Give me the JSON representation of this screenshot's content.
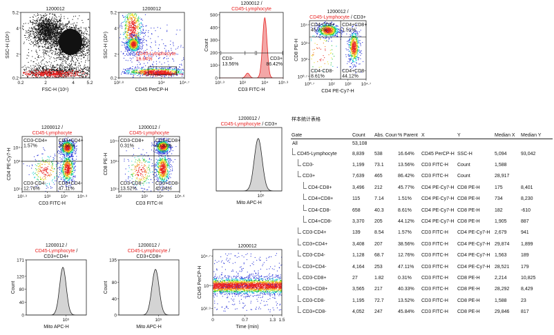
{
  "colors": {
    "red": "#e8201f",
    "blue": "#2b36d8",
    "cyan": "#1fd0d8",
    "green": "#27c23a",
    "yellow": "#e8e21a",
    "orange": "#f0801b",
    "hist_fill": "#d4d4d4"
  },
  "panels": [
    {
      "id": "p1",
      "kind": "dot",
      "title": [
        [
          {
            "t": "1200012",
            "c": "k"
          }
        ]
      ],
      "xlabel": "FSC-H (10⁶)",
      "ylabel": "SSC-H (10⁶)",
      "xticks": [
        {
          "v": 0.2,
          "l": "0.2"
        },
        {
          "v": 2,
          "l": "2"
        },
        {
          "v": 4,
          "l": "4"
        },
        {
          "v": 5.2,
          "l": "5.2"
        }
      ],
      "yticks": [
        {
          "v": 0.2,
          "l": "0.2"
        },
        {
          "v": 2,
          "l": "2"
        },
        {
          "v": 4,
          "l": "4"
        },
        {
          "v": 5.2,
          "l": "5.2"
        }
      ],
      "xr": [
        0.2,
        5.2
      ],
      "yr": [
        0.2,
        5.2
      ]
    },
    {
      "id": "p2",
      "kind": "dot",
      "title": [
        [
          {
            "t": "1200012",
            "c": "k"
          }
        ]
      ],
      "xlabel": "CD45 PerCP-H",
      "ylabel": "SSC-H (10⁶)",
      "xticks": [
        {
          "v": 0,
          "l": "10²·⁸"
        },
        {
          "v": 0.65,
          "l": "10⁴"
        },
        {
          "v": 1,
          "l": "10⁴·⁷"
        }
      ],
      "yticks": [
        {
          "v": 0.2,
          "l": "0.2"
        },
        {
          "v": 2,
          "l": "2"
        },
        {
          "v": 4,
          "l": "4"
        },
        {
          "v": 5.2,
          "l": "5.2"
        }
      ],
      "xr": [
        0,
        1
      ],
      "yr": [
        0.2,
        5.2
      ],
      "gate_label": "CD45-Lymphocyte",
      "gate_pct": "16.64%"
    },
    {
      "id": "p3",
      "kind": "hist",
      "title": [
        [
          {
            "t": "1200012 /",
            "c": "k"
          }
        ],
        [
          {
            "t": "CD45-Lymphocyte",
            "c": "r"
          }
        ]
      ],
      "xlabel": "CD3 FITC-H",
      "ylabel": "Count",
      "xticks": [
        {
          "v": 0,
          "l": "10¹·³"
        },
        {
          "v": 0.36,
          "l": "10³"
        },
        {
          "v": 0.71,
          "l": "10⁴"
        },
        {
          "v": 1,
          "l": "10⁵·³"
        }
      ],
      "yticks": [
        {
          "v": 0,
          "l": "0"
        },
        {
          "v": 100,
          "l": "100"
        },
        {
          "v": 200,
          "l": "200"
        },
        {
          "v": 300,
          "l": "300"
        },
        {
          "v": 400,
          "l": "400"
        },
        {
          "v": 500,
          "l": "500"
        }
      ],
      "yr": [
        0,
        520
      ],
      "peaks": [
        [
          0.44,
          0.03,
          0.08
        ],
        [
          0.71,
          0.035,
          1.0
        ]
      ],
      "fill": "red",
      "regions": [
        {
          "label": "CD3-",
          "pct": "13.56%"
        },
        {
          "label": "CD3+",
          "pct": "86.42%"
        }
      ]
    },
    {
      "id": "p4",
      "kind": "quad",
      "title": [
        [
          {
            "t": "1200012 /",
            "c": "k"
          }
        ],
        [
          {
            "t": "CD45-Lymphocyte",
            "c": "r"
          },
          {
            "t": " / CD3+",
            "c": "k"
          }
        ]
      ],
      "xlabel": "CD4 PE-Cy7-H",
      "ylabel": "CD8 PE-H",
      "xticks": [
        {
          "v": 0,
          "l": "10⁰·⁷"
        },
        {
          "v": 0.39,
          "l": "10²"
        },
        {
          "v": 0.68,
          "l": "10³"
        },
        {
          "v": 1,
          "l": "10⁴·⁷"
        }
      ],
      "yticks": [
        {
          "v": 0.05,
          "l": "10⁰·⁷"
        },
        {
          "v": 0.34,
          "l": "10²"
        },
        {
          "v": 0.62,
          "l": "10³"
        },
        {
          "v": 0.93,
          "l": "10⁴"
        }
      ],
      "quads": [
        {
          "label": "CD4-CD8+",
          "pct": "45.77%"
        },
        {
          "label": "CD4+CD8+",
          "pct": "1.51%"
        },
        {
          "label": "CD4-CD8-",
          "pct": "8.61%"
        },
        {
          "label": "CD4+CD8-",
          "pct": "44.12%"
        }
      ],
      "qx": 0.55,
      "qy": 0.72,
      "clusters": [
        [
          0.32,
          0.84,
          0.1,
          0.06,
          1.0
        ],
        [
          0.78,
          0.55,
          0.05,
          0.14,
          0.9
        ],
        [
          0.2,
          0.45,
          0.16,
          0.2,
          0.12
        ]
      ]
    },
    {
      "id": "p5",
      "kind": "quad",
      "title": [
        [
          {
            "t": "1200012 /",
            "c": "k"
          }
        ],
        [
          {
            "t": "CD45-Lymphocyte",
            "c": "r"
          }
        ]
      ],
      "xlabel": "CD3 FITC-H",
      "ylabel": "CD4 PE-Cy7-H",
      "xticks": [
        {
          "v": 0,
          "l": "10¹·³"
        },
        {
          "v": 0.42,
          "l": "10³"
        },
        {
          "v": 0.7,
          "l": "10⁴"
        },
        {
          "v": 1,
          "l": "10⁵·³"
        }
      ],
      "yticks": [
        {
          "v": 0.05,
          "l": "10¹"
        },
        {
          "v": 0.55,
          "l": "10³"
        },
        {
          "v": 0.8,
          "l": "10⁴"
        }
      ],
      "quads": [
        {
          "label": "CD3-CD4+",
          "pct": "1.57%"
        },
        {
          "label": "CD3+CD4+",
          "pct": "38.56%"
        },
        {
          "label": "CD3-CD4-",
          "pct": "12.76%"
        },
        {
          "label": "CD3+CD4-",
          "pct": "47.11%"
        }
      ],
      "qx": 0.58,
      "qy": 0.55,
      "clusters": [
        [
          0.75,
          0.8,
          0.06,
          0.07,
          1.0
        ],
        [
          0.75,
          0.42,
          0.06,
          0.13,
          0.9
        ],
        [
          0.38,
          0.38,
          0.12,
          0.15,
          0.35
        ]
      ]
    },
    {
      "id": "p6",
      "kind": "quad",
      "title": [
        [
          {
            "t": "1200012 /",
            "c": "k"
          }
        ],
        [
          {
            "t": "CD45-Lymphocyte",
            "c": "r"
          }
        ]
      ],
      "xlabel": "CD3 FITC-H",
      "ylabel": "CD8 PE-H",
      "xticks": [
        {
          "v": 0,
          "l": "10¹"
        },
        {
          "v": 0.42,
          "l": "10³"
        },
        {
          "v": 0.68,
          "l": "10⁴"
        },
        {
          "v": 1,
          "l": "10⁵·⁶"
        }
      ],
      "yticks": [
        {
          "v": 0.05,
          "l": "10¹"
        },
        {
          "v": 0.55,
          "l": "10³"
        },
        {
          "v": 0.92,
          "l": "10⁴"
        }
      ],
      "quads": [
        {
          "label": "CD3-CD8+",
          "pct": "0.31%"
        },
        {
          "label": "CD3+CD8+",
          "pct": "40.33%"
        },
        {
          "label": "CD3-CD8-",
          "pct": "13.52%"
        },
        {
          "label": "CD3+CD8-",
          "pct": "45.84%"
        }
      ],
      "qx": 0.58,
      "qy": 0.65,
      "clusters": [
        [
          0.72,
          0.82,
          0.06,
          0.06,
          1.0
        ],
        [
          0.72,
          0.42,
          0.06,
          0.14,
          0.9
        ],
        [
          0.35,
          0.38,
          0.11,
          0.16,
          0.35
        ]
      ]
    },
    {
      "id": "p7",
      "kind": "hist",
      "title": [
        [
          {
            "t": "1200012 /",
            "c": "k"
          }
        ],
        [
          {
            "t": "CD45-Lymphocyte",
            "c": "r"
          },
          {
            "t": " / CD3+",
            "c": "k"
          }
        ]
      ],
      "xlabel": "Mito APC-H",
      "ylabel": "",
      "xticks": [
        {
          "v": 0.68,
          "l": "10⁵"
        }
      ],
      "yticks": [],
      "yr": [
        0,
        1
      ],
      "peaks": [
        [
          0.64,
          0.06,
          0.9
        ]
      ],
      "fill": "hist_fill"
    },
    {
      "id": "p8",
      "kind": "hist",
      "title": [
        [
          {
            "t": "1200012 /",
            "c": "k"
          }
        ],
        [
          {
            "t": "CD45-Lymphocyte",
            "c": "r"
          },
          {
            "t": " /",
            "c": "k"
          }
        ],
        [
          {
            "t": "CD3+CD4+",
            "c": "k"
          }
        ]
      ],
      "xlabel": "Mito APC-H",
      "ylabel": "Count",
      "xticks": [
        {
          "v": 0.66,
          "l": "10⁵"
        }
      ],
      "yticks": [
        {
          "v": 0,
          "l": "0"
        },
        {
          "v": 40,
          "l": "40"
        },
        {
          "v": 80,
          "l": "80"
        },
        {
          "v": 120,
          "l": "120"
        },
        {
          "v": 171,
          "l": "171"
        }
      ],
      "yr": [
        0,
        171
      ],
      "peaks": [
        [
          0.61,
          0.055,
          0.94
        ]
      ],
      "fill": "hist_fill"
    },
    {
      "id": "p9",
      "kind": "hist",
      "title": [
        [
          {
            "t": "1200012 /",
            "c": "k"
          }
        ],
        [
          {
            "t": "CD45-Lymphocyte",
            "c": "r"
          },
          {
            "t": " /",
            "c": "k"
          }
        ],
        [
          {
            "t": "CD3+CD8+",
            "c": "k"
          }
        ]
      ],
      "xlabel": "Mito APC-H",
      "ylabel": "Count",
      "xticks": [
        {
          "v": 0.66,
          "l": "10⁵"
        }
      ],
      "yticks": [
        {
          "v": 0,
          "l": "0"
        },
        {
          "v": 40,
          "l": "40"
        },
        {
          "v": 80,
          "l": "80"
        },
        {
          "v": 135,
          "l": "135"
        }
      ],
      "yr": [
        0,
        135
      ],
      "peaks": [
        [
          0.61,
          0.06,
          0.9
        ]
      ],
      "fill": "hist_fill"
    },
    {
      "id": "p10",
      "kind": "time",
      "title": [
        [
          {
            "t": "1200012",
            "c": "k"
          }
        ]
      ],
      "xlabel": "Time  (min)",
      "ylabel": "CD45 PerCP-H",
      "xticks": [
        {
          "v": 0,
          "l": "0"
        },
        {
          "v": 0.7,
          "l": "0.7"
        },
        {
          "v": 1.3,
          "l": "1.3"
        },
        {
          "v": 1.5,
          "l": "1.5"
        }
      ],
      "yticks": [
        {
          "v": 0.1,
          "l": "10²·⁹"
        },
        {
          "v": 0.45,
          "l": "10⁴"
        },
        {
          "v": 0.9,
          "l": "10⁴·⁷"
        }
      ],
      "xr": [
        0,
        1.5
      ]
    }
  ],
  "stats": {
    "title": "样本统计表格",
    "columns": [
      "Gate",
      "Count",
      "Abs. Count",
      "% Parent",
      "X",
      "Y",
      "Median X",
      "Median Y"
    ],
    "rows": [
      {
        "gate": "All",
        "level": 0,
        "count": "53,108",
        "abs": "",
        "pct": "",
        "x": "",
        "y": "",
        "mx": "",
        "my": ""
      },
      {
        "gate": "CD45-Lymphocyte",
        "level": 1,
        "count": "8,839",
        "abs": "538",
        "pct": "16.64%",
        "x": "CD45 PerCP-H",
        "y": "SSC-H",
        "mx": "5,094",
        "my": "93,042"
      },
      {
        "gate": "CD3-",
        "level": 2,
        "count": "1,199",
        "abs": "73.1",
        "pct": "13.56%",
        "x": "CD3 FITC-H",
        "y": "Count",
        "mx": "1,588",
        "my": ""
      },
      {
        "gate": "CD3+",
        "level": 2,
        "count": "7,639",
        "abs": "465",
        "pct": "86.42%",
        "x": "CD3 FITC-H",
        "y": "Count",
        "mx": "28,917",
        "my": ""
      },
      {
        "gate": "CD4-CD8+",
        "level": 3,
        "count": "3,496",
        "abs": "212",
        "pct": "45.77%",
        "x": "CD4 PE-Cy7-H",
        "y": "CD8 PE-H",
        "mx": "175",
        "my": "8,401"
      },
      {
        "gate": "CD4+CD8+",
        "level": 3,
        "count": "115",
        "abs": "7.14",
        "pct": "1.51%",
        "x": "CD4 PE-Cy7-H",
        "y": "CD8 PE-H",
        "mx": "734",
        "my": "8,230"
      },
      {
        "gate": "CD4-CD8-",
        "level": 3,
        "count": "658",
        "abs": "40.3",
        "pct": "8.61%",
        "x": "CD4 PE-Cy7-H",
        "y": "CD8 PE-H",
        "mx": "182",
        "my": "-610"
      },
      {
        "gate": "CD4+CD8-",
        "level": 3,
        "count": "3,370",
        "abs": "205",
        "pct": "44.12%",
        "x": "CD4 PE-Cy7-H",
        "y": "CD8 PE-H",
        "mx": "1,905",
        "my": "887"
      },
      {
        "gate": "CD3-CD4+",
        "level": 2,
        "count": "139",
        "abs": "8.54",
        "pct": "1.57%",
        "x": "CD3 FITC-H",
        "y": "CD4 PE-Cy7-H",
        "mx": "2,679",
        "my": "941"
      },
      {
        "gate": "CD3+CD4+",
        "level": 2,
        "count": "3,408",
        "abs": "207",
        "pct": "38.56%",
        "x": "CD3 FITC-H",
        "y": "CD4 PE-Cy7-H",
        "mx": "29,874",
        "my": "1,899"
      },
      {
        "gate": "CD3-CD4-",
        "level": 2,
        "count": "1,128",
        "abs": "68.7",
        "pct": "12.76%",
        "x": "CD3 FITC-H",
        "y": "CD4 PE-Cy7-H",
        "mx": "1,563",
        "my": "189"
      },
      {
        "gate": "CD3+CD4-",
        "level": 2,
        "count": "4,164",
        "abs": "253",
        "pct": "47.11%",
        "x": "CD3 FITC-H",
        "y": "CD4 PE-Cy7-H",
        "mx": "28,521",
        "my": "179"
      },
      {
        "gate": "CD3-CD8+",
        "level": 2,
        "count": "27",
        "abs": "1.82",
        "pct": "0.31%",
        "x": "CD3 FITC-H",
        "y": "CD8 PE-H",
        "mx": "2,214",
        "my": "10,825"
      },
      {
        "gate": "CD3+CD8+",
        "level": 2,
        "count": "3,565",
        "abs": "217",
        "pct": "40.33%",
        "x": "CD3 FITC-H",
        "y": "CD8 PE-H",
        "mx": "28,292",
        "my": "8,429"
      },
      {
        "gate": "CD3-CD8-",
        "level": 2,
        "count": "1,195",
        "abs": "72.7",
        "pct": "13.52%",
        "x": "CD3 FITC-H",
        "y": "CD8 PE-H",
        "mx": "1,588",
        "my": "23"
      },
      {
        "gate": "CD3+CD8-",
        "level": 2,
        "count": "4,052",
        "abs": "247",
        "pct": "45.84%",
        "x": "CD3 FITC-H",
        "y": "CD8 PE-H",
        "mx": "29,846",
        "my": "817"
      }
    ]
  },
  "chart_data": [
    {
      "type": "scatter",
      "title": "1200012",
      "xlabel": "FSC-H (10⁶)",
      "ylabel": "SSC-H (10⁶)",
      "xlim": [
        0.2,
        5.2
      ],
      "ylim": [
        0.2,
        5.2
      ]
    },
    {
      "type": "scatter",
      "title": "1200012",
      "xlabel": "CD45 PerCP-H",
      "ylabel": "SSC-H (10⁶)",
      "gates": [
        {
          "name": "CD45-Lymphocyte",
          "percent": 16.64
        }
      ]
    },
    {
      "type": "histogram",
      "title": "1200012 / CD45-Lymphocyte",
      "xlabel": "CD3 FITC-H",
      "ylabel": "Count",
      "ylim": [
        0,
        500
      ],
      "gates": [
        {
          "name": "CD3-",
          "percent": 13.56
        },
        {
          "name": "CD3+",
          "percent": 86.42
        }
      ]
    },
    {
      "type": "scatter",
      "title": "1200012 / CD45-Lymphocyte / CD3+",
      "xlabel": "CD4 PE-Cy7-H",
      "ylabel": "CD8 PE-H",
      "quadrants": [
        {
          "name": "CD4-CD8+",
          "percent": 45.77
        },
        {
          "name": "CD4+CD8+",
          "percent": 1.51
        },
        {
          "name": "CD4-CD8-",
          "percent": 8.61
        },
        {
          "name": "CD4+CD8-",
          "percent": 44.12
        }
      ]
    },
    {
      "type": "scatter",
      "title": "1200012 / CD45-Lymphocyte",
      "xlabel": "CD3 FITC-H",
      "ylabel": "CD4 PE-Cy7-H",
      "quadrants": [
        {
          "name": "CD3-CD4+",
          "percent": 1.57
        },
        {
          "name": "CD3+CD4+",
          "percent": 38.56
        },
        {
          "name": "CD3-CD4-",
          "percent": 12.76
        },
        {
          "name": "CD3+CD4-",
          "percent": 47.11
        }
      ]
    },
    {
      "type": "scatter",
      "title": "1200012 / CD45-Lymphocyte",
      "xlabel": "CD3 FITC-H",
      "ylabel": "CD8 PE-H",
      "quadrants": [
        {
          "name": "CD3-CD8+",
          "percent": 0.31
        },
        {
          "name": "CD3+CD8+",
          "percent": 40.33
        },
        {
          "name": "CD3-CD8-",
          "percent": 13.52
        },
        {
          "name": "CD3+CD8-",
          "percent": 45.84
        }
      ]
    },
    {
      "type": "histogram",
      "title": "1200012 / CD45-Lymphocyte / CD3+",
      "xlabel": "Mito APC-H",
      "ylabel": ""
    },
    {
      "type": "histogram",
      "title": "1200012 / CD45-Lymphocyte / CD3+CD4+",
      "xlabel": "Mito APC-H",
      "ylabel": "Count",
      "ylim": [
        0,
        171
      ]
    },
    {
      "type": "histogram",
      "title": "1200012 / CD45-Lymphocyte / CD3+CD8+",
      "xlabel": "Mito APC-H",
      "ylabel": "Count",
      "ylim": [
        0,
        135
      ]
    },
    {
      "type": "scatter",
      "title": "1200012",
      "xlabel": "Time (min)",
      "ylabel": "CD45 PerCP-H",
      "xlim": [
        0,
        1.5
      ]
    }
  ]
}
